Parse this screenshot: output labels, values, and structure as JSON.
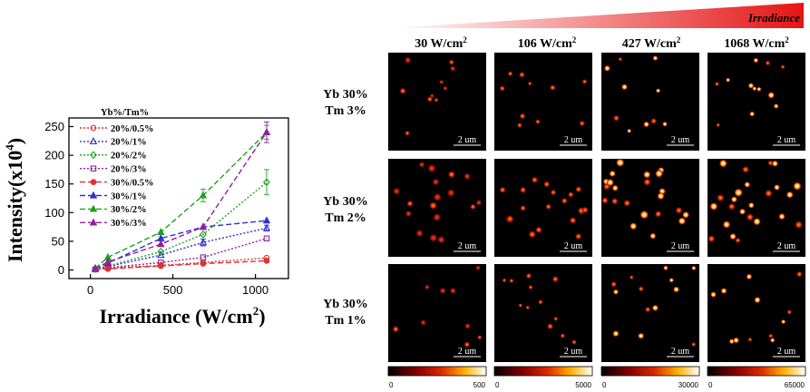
{
  "chart_data": {
    "type": "line",
    "xlabel": "Irradiance (W/cm",
    "xlabel_sup": "2",
    "xlabel_tail": ")",
    "ylabel": "Intensity(x10",
    "ylabel_sup": "4",
    "ylabel_tail": ")",
    "xlim": [
      -130,
      1200
    ],
    "ylim": [
      -15,
      265
    ],
    "xticks": [
      0,
      500,
      1000
    ],
    "yticks": [
      0,
      50,
      100,
      150,
      200,
      250
    ],
    "legend_title": "Yb%/Tm%",
    "legend_position": "top-left",
    "x": [
      30,
      106,
      427,
      683,
      1068
    ],
    "series": [
      {
        "name": "20%/0.5%",
        "color": "#e03030",
        "marker": "circle",
        "filled": false,
        "dash": "2,2",
        "values": [
          1,
          3,
          8,
          13,
          21
        ]
      },
      {
        "name": "20%/1%",
        "color": "#3030d0",
        "marker": "triangle",
        "filled": false,
        "dash": "2,2",
        "values": [
          2,
          6,
          26,
          48,
          73
        ]
      },
      {
        "name": "20%/2%",
        "color": "#20a020",
        "marker": "diamond",
        "filled": false,
        "dash": "2,2",
        "values": [
          2,
          7,
          32,
          62,
          153
        ]
      },
      {
        "name": "20%/3%",
        "color": "#9020a0",
        "marker": "square",
        "filled": false,
        "dash": "2,2",
        "values": [
          1,
          4,
          13,
          22,
          55
        ]
      },
      {
        "name": "30%/0.5%",
        "color": "#e03030",
        "marker": "circle",
        "filled": true,
        "dash": "6,3",
        "values": [
          1,
          2,
          7,
          11,
          16
        ]
      },
      {
        "name": "30%/1%",
        "color": "#3030d0",
        "marker": "triangle",
        "filled": true,
        "dash": "6,3",
        "values": [
          3,
          12,
          55,
          75,
          86
        ]
      },
      {
        "name": "30%/2%",
        "color": "#20a020",
        "marker": "triangle",
        "filled": true,
        "dash": "6,3",
        "values": [
          3,
          22,
          66,
          130,
          240
        ]
      },
      {
        "name": "30%/3%",
        "color": "#9020a0",
        "marker": "triangle",
        "filled": true,
        "dash": "6,3",
        "values": [
          2,
          14,
          45,
          75,
          240
        ]
      }
    ]
  },
  "image_grid": {
    "gradient_label": "Irradiance",
    "column_headers": [
      {
        "value": "30 W/cm",
        "sup": "2"
      },
      {
        "value": "106 W/cm",
        "sup": "2"
      },
      {
        "value": "427 W/cm",
        "sup": "2"
      },
      {
        "value": "1068 W/cm",
        "sup": "2"
      }
    ],
    "row_labels": [
      {
        "line1": "Yb 30%",
        "line2": "Tm 3%"
      },
      {
        "line1": "Yb 30%",
        "line2": "Tm 2%"
      },
      {
        "line1": "Yb 30%",
        "line2": "Tm 1%"
      }
    ],
    "scale_bar_label": "2 um",
    "colorbars": [
      {
        "min": "0",
        "max": "500"
      },
      {
        "min": "0",
        "max": "5000"
      },
      {
        "min": "0",
        "max": "30000"
      },
      {
        "min": "0",
        "max": "65000"
      }
    ]
  }
}
